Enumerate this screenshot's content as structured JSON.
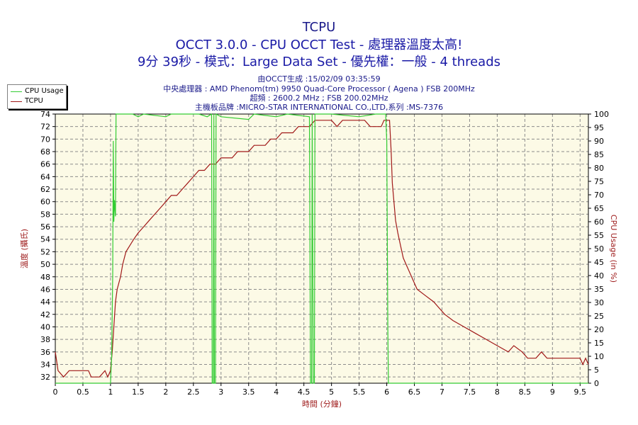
{
  "header": {
    "title": "TCPU",
    "subtitle": "OCCT 3.0.0 - CPU OCCT Test - 處理器溫度太高!",
    "test_info": "9分 39秒 - 模式：Large Data Set - 優先權：一般 - 4 threads",
    "generated": "由OCCT生成 :15/02/09 03:35:59",
    "cpu": "中央處理器 : AMD Phenom(tm) 9950 Quad-Core Processor ( Agena ) FSB 200MHz",
    "clock": "超頻 : 2600.2 MHz ; FSB 200.02MHz",
    "motherboard": "主機板品牌 :MICRO-STAR INTERNATIONAL CO.,LTD,系列 :MS-7376"
  },
  "legend": {
    "cpu_usage": "CPU Usage",
    "tcpu": "TCPU"
  },
  "colors": {
    "cpu_usage": "#33cc33",
    "tcpu": "#a01818",
    "plot_bg": "#fcfae6",
    "grid": "#8c8c8c",
    "title_blue": "#1a1aa6",
    "axis_label": "#a02020"
  },
  "chart_data": {
    "type": "line",
    "xlabel": "時間 (分鐘)",
    "ylabel_left": "溫度 (攝氏)",
    "ylabel_right": "CPU Usage (in %)",
    "xlim": [
      0,
      9.65
    ],
    "ylim_left": [
      31,
      74
    ],
    "ylim_right": [
      0,
      100
    ],
    "x_ticks": [
      0,
      0.5,
      1,
      1.5,
      2,
      2.5,
      3,
      3.5,
      4,
      4.5,
      5,
      5.5,
      6,
      6.5,
      7,
      7.5,
      8,
      8.5,
      9,
      9.5
    ],
    "x_tick_labels": [
      "0",
      "0.5",
      "1",
      "1.5",
      "2",
      "2.5",
      "3",
      "3.5",
      "4",
      "4.5",
      "5",
      "5.5",
      "6",
      "6.5",
      "7",
      "7.5",
      "8",
      "8.5",
      "9",
      "9.5"
    ],
    "y_left_ticks": [
      32,
      34,
      36,
      38,
      40,
      42,
      44,
      46,
      48,
      50,
      52,
      54,
      56,
      58,
      60,
      62,
      64,
      66,
      68,
      70,
      72,
      74
    ],
    "y_right_ticks": [
      0,
      5,
      10,
      15,
      20,
      25,
      30,
      35,
      40,
      45,
      50,
      55,
      60,
      65,
      70,
      75,
      80,
      85,
      90,
      95,
      100
    ],
    "grid": true,
    "legend_position": "top-left",
    "series": [
      {
        "name": "TCPU",
        "axis": "left",
        "points": [
          [
            0,
            36
          ],
          [
            0.05,
            33
          ],
          [
            0.15,
            32
          ],
          [
            0.25,
            33
          ],
          [
            0.6,
            33
          ],
          [
            0.65,
            32
          ],
          [
            0.8,
            32
          ],
          [
            0.9,
            33
          ],
          [
            0.95,
            32
          ],
          [
            1.0,
            33
          ],
          [
            1.03,
            36
          ],
          [
            1.06,
            40
          ],
          [
            1.09,
            44
          ],
          [
            1.12,
            46
          ],
          [
            1.18,
            48
          ],
          [
            1.22,
            50
          ],
          [
            1.28,
            52
          ],
          [
            1.35,
            53
          ],
          [
            1.42,
            54
          ],
          [
            1.5,
            55
          ],
          [
            1.6,
            56
          ],
          [
            1.7,
            57
          ],
          [
            1.8,
            58
          ],
          [
            1.9,
            59
          ],
          [
            2.0,
            60
          ],
          [
            2.1,
            61
          ],
          [
            2.2,
            61
          ],
          [
            2.3,
            62
          ],
          [
            2.4,
            63
          ],
          [
            2.5,
            64
          ],
          [
            2.6,
            65
          ],
          [
            2.7,
            65
          ],
          [
            2.8,
            66
          ],
          [
            2.9,
            66
          ],
          [
            3.0,
            67
          ],
          [
            3.2,
            67
          ],
          [
            3.3,
            68
          ],
          [
            3.5,
            68
          ],
          [
            3.6,
            69
          ],
          [
            3.8,
            69
          ],
          [
            3.9,
            70
          ],
          [
            4.0,
            70
          ],
          [
            4.1,
            71
          ],
          [
            4.3,
            71
          ],
          [
            4.4,
            72
          ],
          [
            4.6,
            72
          ],
          [
            4.7,
            73
          ],
          [
            5.0,
            73
          ],
          [
            5.1,
            72
          ],
          [
            5.2,
            73
          ],
          [
            5.6,
            73
          ],
          [
            5.7,
            72
          ],
          [
            5.9,
            72
          ],
          [
            5.95,
            73
          ],
          [
            6.05,
            73
          ],
          [
            6.08,
            68
          ],
          [
            6.1,
            63
          ],
          [
            6.13,
            60
          ],
          [
            6.16,
            57
          ],
          [
            6.2,
            55
          ],
          [
            6.25,
            53
          ],
          [
            6.3,
            51
          ],
          [
            6.35,
            50
          ],
          [
            6.45,
            48
          ],
          [
            6.55,
            46
          ],
          [
            6.7,
            45
          ],
          [
            6.85,
            44
          ],
          [
            6.95,
            43
          ],
          [
            7.05,
            42
          ],
          [
            7.2,
            41
          ],
          [
            7.4,
            40
          ],
          [
            7.6,
            39
          ],
          [
            7.8,
            38
          ],
          [
            8.0,
            37
          ],
          [
            8.2,
            36
          ],
          [
            8.3,
            37
          ],
          [
            8.45,
            36
          ],
          [
            8.55,
            35
          ],
          [
            8.7,
            35
          ],
          [
            8.8,
            36
          ],
          [
            8.9,
            35
          ],
          [
            9.0,
            35
          ],
          [
            9.5,
            35
          ],
          [
            9.55,
            34
          ],
          [
            9.6,
            35
          ],
          [
            9.65,
            34
          ]
        ]
      },
      {
        "name": "CPU Usage",
        "axis": "right",
        "points": [
          [
            0,
            0
          ],
          [
            1.0,
            0
          ],
          [
            1.02,
            10
          ],
          [
            1.04,
            40
          ],
          [
            1.05,
            90
          ],
          [
            1.06,
            60
          ],
          [
            1.07,
            68
          ],
          [
            1.09,
            62
          ],
          [
            1.1,
            100
          ],
          [
            1.4,
            100
          ],
          [
            1.5,
            99
          ],
          [
            1.6,
            100
          ],
          [
            2.0,
            99
          ],
          [
            2.1,
            100
          ],
          [
            2.6,
            100
          ],
          [
            2.75,
            99
          ],
          [
            2.83,
            100
          ],
          [
            2.84,
            0
          ],
          [
            2.86,
            0
          ],
          [
            2.87,
            100
          ],
          [
            2.88,
            0
          ],
          [
            2.9,
            0
          ],
          [
            2.91,
            100
          ],
          [
            3.0,
            99
          ],
          [
            3.5,
            98
          ],
          [
            3.6,
            100
          ],
          [
            4.0,
            99
          ],
          [
            4.2,
            100
          ],
          [
            4.6,
            99
          ],
          [
            4.62,
            0
          ],
          [
            4.64,
            0
          ],
          [
            4.65,
            100
          ],
          [
            4.67,
            0
          ],
          [
            4.69,
            0
          ],
          [
            4.7,
            100
          ],
          [
            5.0,
            100
          ],
          [
            5.5,
            99
          ],
          [
            5.8,
            100
          ],
          [
            5.98,
            100
          ],
          [
            6.0,
            90
          ],
          [
            6.02,
            20
          ],
          [
            6.03,
            0
          ],
          [
            9.65,
            0
          ]
        ]
      }
    ]
  }
}
